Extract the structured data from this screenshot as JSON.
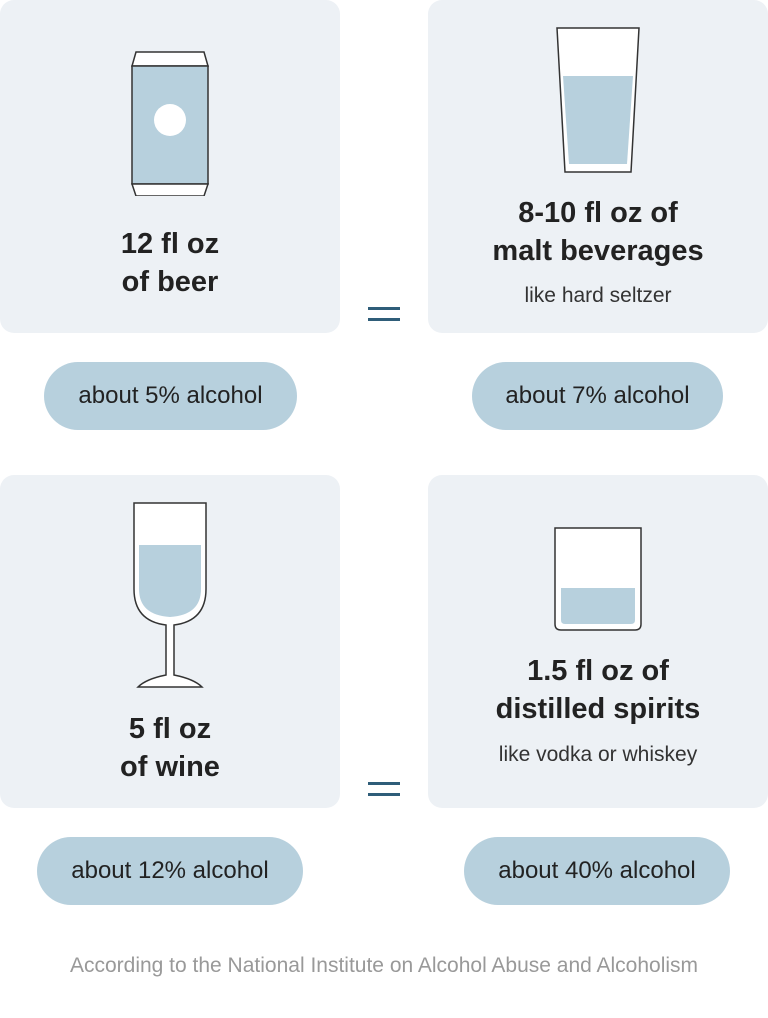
{
  "cards": [
    {
      "title_lines": [
        "12 fl oz",
        "of beer"
      ],
      "subtitle": "",
      "alcohol": "about 5% alcohol",
      "icon": "beer-can-icon"
    },
    {
      "title_lines": [
        "8-10 fl oz of",
        "malt beverages"
      ],
      "subtitle": "like hard seltzer",
      "alcohol": "about 7% alcohol",
      "icon": "pint-glass-icon"
    },
    {
      "title_lines": [
        "5 fl oz",
        "of wine"
      ],
      "subtitle": "",
      "alcohol": "about 12% alcohol",
      "icon": "wine-glass-icon"
    },
    {
      "title_lines": [
        "1.5 fl oz of",
        "distilled spirits"
      ],
      "subtitle": "like vodka or whiskey",
      "alcohol": "about 40% alcohol",
      "icon": "rocks-glass-icon"
    }
  ],
  "footer": "According to the National Institute on Alcohol Abuse and Alcoholism",
  "colors": {
    "card_background": "#edf1f5",
    "pill_background": "#b7d0dd",
    "liquid": "#b7d0dd",
    "equals_sign": "#2f5d79",
    "footer_text": "#999999"
  }
}
